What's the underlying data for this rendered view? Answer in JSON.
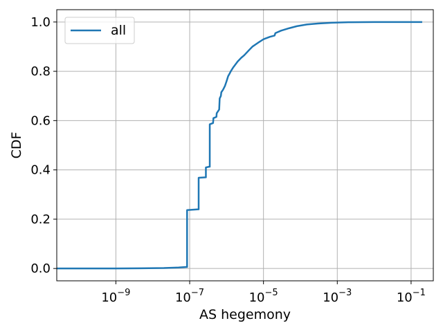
{
  "chart_data": {
    "type": "line",
    "xscale": "log",
    "xlabel": "AS hegemony",
    "ylabel": "CDF",
    "xlim": [
      2.5e-11,
      0.4
    ],
    "ylim": [
      -0.05,
      1.05
    ],
    "grid": true,
    "legend": {
      "position": "top-left"
    },
    "x_ticks": [
      {
        "value": 1e-09,
        "base": "10",
        "exp": "−9"
      },
      {
        "value": 1e-07,
        "base": "10",
        "exp": "−7"
      },
      {
        "value": 1e-05,
        "base": "10",
        "exp": "−5"
      },
      {
        "value": 0.001,
        "base": "10",
        "exp": "−3"
      },
      {
        "value": 0.1,
        "base": "10",
        "exp": "−1"
      }
    ],
    "y_ticks": [
      {
        "value": 0.0,
        "label": "0.0"
      },
      {
        "value": 0.2,
        "label": "0.2"
      },
      {
        "value": 0.4,
        "label": "0.4"
      },
      {
        "value": 0.6,
        "label": "0.6"
      },
      {
        "value": 0.8,
        "label": "0.8"
      },
      {
        "value": 1.0,
        "label": "1.0"
      }
    ],
    "series": [
      {
        "name": "all",
        "color": "#1f77b4",
        "x": [
          2.5e-11,
          1e-10,
          1e-09,
          5e-09,
          2e-08,
          5e-08,
          8e-08,
          8.5e-08,
          8.5e-08,
          1.7e-07,
          1.75e-07,
          1.75e-07,
          2.7e-07,
          2.75e-07,
          2.75e-07,
          3.4e-07,
          3.5e-07,
          3.5e-07,
          4.3e-07,
          4.4e-07,
          5.3e-07,
          5.4e-07,
          6.3e-07,
          6.5e-07,
          7e-07,
          7.2e-07,
          8e-07,
          9e-07,
          1e-06,
          1.1e-06,
          1.2e-06,
          1.3e-06,
          1.5e-06,
          2e-06,
          2.5e-06,
          3e-06,
          4e-06,
          5e-06,
          7e-06,
          1e-05,
          1.5e-05,
          2e-05,
          2.1e-05,
          3e-05,
          5e-05,
          8e-05,
          0.00015,
          0.0003,
          0.0007,
          0.002,
          0.01,
          0.05,
          0.2
        ],
        "y": [
          0.0,
          0.0,
          0.0,
          0.001,
          0.002,
          0.004,
          0.006,
          0.006,
          0.237,
          0.24,
          0.24,
          0.368,
          0.37,
          0.37,
          0.41,
          0.413,
          0.413,
          0.585,
          0.59,
          0.61,
          0.615,
          0.63,
          0.645,
          0.69,
          0.7,
          0.715,
          0.725,
          0.74,
          0.76,
          0.78,
          0.79,
          0.8,
          0.815,
          0.84,
          0.855,
          0.865,
          0.885,
          0.9,
          0.915,
          0.93,
          0.94,
          0.945,
          0.955,
          0.965,
          0.975,
          0.983,
          0.99,
          0.994,
          0.997,
          0.999,
          1.0,
          1.0,
          1.0
        ]
      }
    ]
  }
}
